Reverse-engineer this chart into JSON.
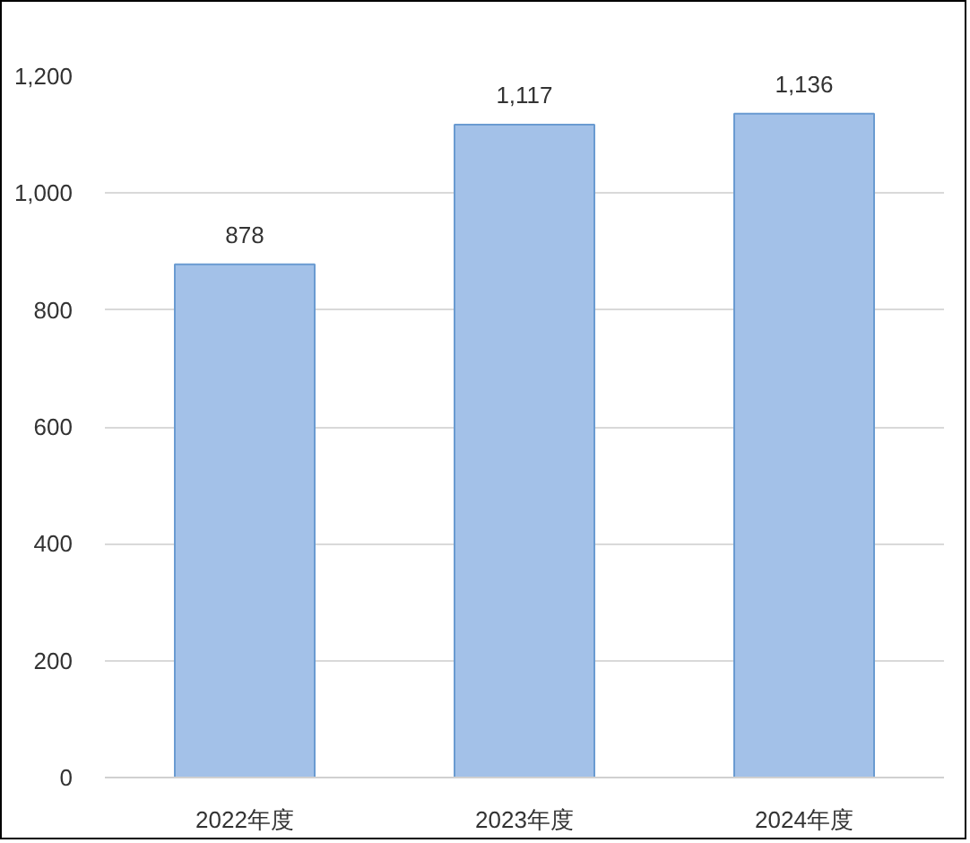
{
  "chart_data": {
    "type": "bar",
    "categories": [
      "2022年度",
      "2023年度",
      "2024年度"
    ],
    "values": [
      878,
      1117,
      1136
    ],
    "value_labels": [
      "878",
      "1,117",
      "1,136"
    ],
    "color": "#a3c1e8",
    "ylim": [
      0,
      1200
    ],
    "yticks": [
      0,
      200,
      400,
      600,
      800,
      {
        "value": 1000,
        "label": "1,000"
      },
      {
        "value": 1200,
        "label": "1,200"
      }
    ],
    "grid": "y"
  }
}
